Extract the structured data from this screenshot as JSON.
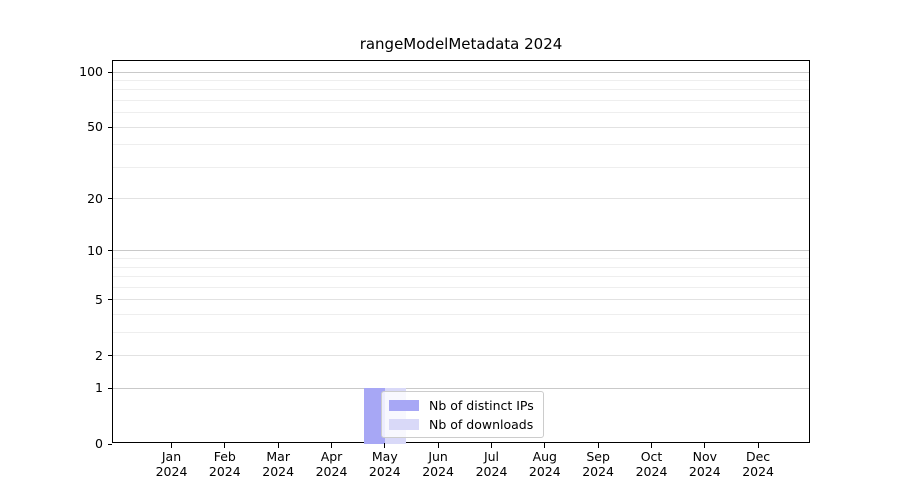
{
  "figure": {
    "background": "#ffffff"
  },
  "chart_data": {
    "type": "bar",
    "title": "rangeModelMetadata 2024",
    "categories": [
      "Jan",
      "Feb",
      "Mar",
      "Apr",
      "May",
      "Jun",
      "Jul",
      "Aug",
      "Sep",
      "Oct",
      "Nov",
      "Dec"
    ],
    "year_label": "2024",
    "series": [
      {
        "name": "Nb of distinct IPs",
        "color": "#a7a7f5",
        "values": [
          0,
          0,
          0,
          0,
          1,
          0,
          0,
          0,
          0,
          0,
          0,
          0
        ]
      },
      {
        "name": "Nb of downloads",
        "color": "#d9d9f8",
        "values": [
          0,
          0,
          0,
          0,
          1,
          0,
          0,
          0,
          0,
          0,
          0,
          0
        ]
      }
    ],
    "yscale": "log1p",
    "ylim": [
      0,
      115
    ],
    "y_tick_labels": [
      0,
      1,
      2,
      5,
      10,
      20,
      50,
      100
    ],
    "y_decade_gridlines": [
      1,
      10,
      100
    ],
    "y_sub_gridlines": [
      2,
      5,
      20,
      50
    ],
    "y_minor_gridlines": [
      3,
      4,
      6,
      7,
      8,
      9,
      30,
      40,
      60,
      70,
      80,
      90
    ],
    "grid": true,
    "legend_position": "lower left of center",
    "colors": {
      "grid_decade": "#c9c9c9",
      "grid_sub": "#e2e2e2",
      "grid_minor": "#eeeeee",
      "axis": "#000000",
      "text": "#000000",
      "legend_border": "#cccccc",
      "legend_background": "rgba(255,255,255,0.8)"
    }
  }
}
